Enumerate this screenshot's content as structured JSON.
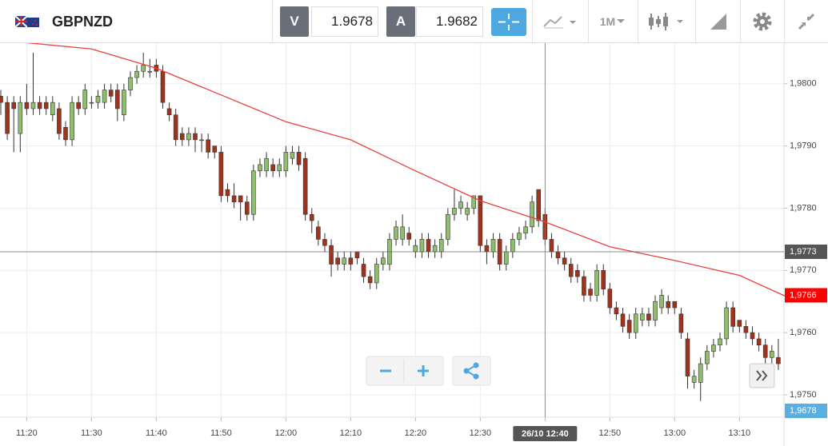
{
  "toolbar": {
    "symbol": "GBPNZD",
    "bid_letter": "V",
    "bid": "1.9678",
    "ask_letter": "A",
    "ask": "1.9682",
    "timeframe": "1M"
  },
  "chart_data": {
    "type": "candlestick",
    "up_color": "#8fbe6c",
    "down_color": "#a3321c",
    "xlim": [
      "11:16",
      "13:17"
    ],
    "xticks": [
      "11:20",
      "11:30",
      "11:40",
      "11:50",
      "12:00",
      "12:10",
      "12:20",
      "12:30",
      "12:40",
      "12:50",
      "13:00",
      "13:10"
    ],
    "ylim": [
      1.97464,
      1.98064
    ],
    "yticks": [
      {
        "value": 1.975,
        "label": "1,9750"
      },
      {
        "value": 1.976,
        "label": "1,9760"
      },
      {
        "value": 1.977,
        "label": "1,9770"
      },
      {
        "value": 1.978,
        "label": "1,9780"
      },
      {
        "value": 1.979,
        "label": "1,9790"
      },
      {
        "value": 1.98,
        "label": "1,9800"
      }
    ],
    "grid": true,
    "x": [
      "11:16",
      "11:17",
      "11:18",
      "11:19",
      "11:20",
      "11:21",
      "11:22",
      "11:23",
      "11:24",
      "11:25",
      "11:26",
      "11:27",
      "11:28",
      "11:29",
      "11:30",
      "11:31",
      "11:32",
      "11:33",
      "11:34",
      "11:35",
      "11:36",
      "11:37",
      "11:38",
      "11:39",
      "11:40",
      "11:41",
      "11:42",
      "11:43",
      "11:44",
      "11:45",
      "11:46",
      "11:47",
      "11:48",
      "11:49",
      "11:50",
      "11:51",
      "11:52",
      "11:53",
      "11:54",
      "11:55",
      "11:56",
      "11:57",
      "11:58",
      "11:59",
      "12:00",
      "12:01",
      "12:02",
      "12:03",
      "12:04",
      "12:05",
      "12:06",
      "12:07",
      "12:08",
      "12:09",
      "12:10",
      "12:11",
      "12:12",
      "12:13",
      "12:14",
      "12:15",
      "12:16",
      "12:17",
      "12:18",
      "12:19",
      "12:20",
      "12:21",
      "12:22",
      "12:23",
      "12:24",
      "12:25",
      "12:26",
      "12:27",
      "12:28",
      "12:29",
      "12:30",
      "12:31",
      "12:32",
      "12:33",
      "12:34",
      "12:35",
      "12:36",
      "12:37",
      "12:38",
      "12:39",
      "12:40",
      "12:41",
      "12:42",
      "12:43",
      "12:44",
      "12:45",
      "12:46",
      "12:47",
      "12:48",
      "12:49",
      "12:50",
      "12:51",
      "12:52",
      "12:53",
      "12:54",
      "12:55",
      "12:56",
      "12:57",
      "12:58",
      "12:59",
      "13:00",
      "13:01",
      "13:02",
      "13:03",
      "13:04",
      "13:05",
      "13:06",
      "13:07",
      "13:08",
      "13:09",
      "13:10",
      "13:11",
      "13:12",
      "13:13",
      "13:14",
      "13:15",
      "13:16"
    ],
    "ohlc": [
      [
        1.9798,
        1.9799,
        1.9795,
        1.9797
      ],
      [
        1.9797,
        1.9798,
        1.9791,
        1.9792
      ],
      [
        1.9797,
        1.9798,
        1.9789,
        1.9796
      ],
      [
        1.9792,
        1.9798,
        1.9789,
        1.9797
      ],
      [
        1.9797,
        1.98,
        1.9795,
        1.9796
      ],
      [
        1.9796,
        1.9805,
        1.9795,
        1.9797
      ],
      [
        1.9797,
        1.9798,
        1.9795,
        1.9796
      ],
      [
        1.9797,
        1.9798,
        1.9795,
        1.9796
      ],
      [
        1.9795,
        1.9798,
        1.9794,
        1.9797
      ],
      [
        1.9796,
        1.9797,
        1.9791,
        1.9792
      ],
      [
        1.9793,
        1.9794,
        1.979,
        1.9791
      ],
      [
        1.9791,
        1.9798,
        1.979,
        1.9797
      ],
      [
        1.9797,
        1.9798,
        1.9795,
        1.9796
      ],
      [
        1.9796,
        1.98,
        1.9795,
        1.9799
      ],
      [
        1.9797,
        1.9798,
        1.9796,
        1.9797
      ],
      [
        1.9797,
        1.9799,
        1.9796,
        1.9798
      ],
      [
        1.9797,
        1.98,
        1.9796,
        1.9799
      ],
      [
        1.9799,
        1.98,
        1.9797,
        1.9798
      ],
      [
        1.9799,
        1.98,
        1.9794,
        1.9796
      ],
      [
        1.9795,
        1.98,
        1.9794,
        1.9799
      ],
      [
        1.9799,
        1.9802,
        1.9798,
        1.9801
      ],
      [
        1.9801,
        1.9803,
        1.98,
        1.9802
      ],
      [
        1.9802,
        1.9805,
        1.9801,
        1.9803
      ],
      [
        1.9802,
        1.9804,
        1.9801,
        1.9802
      ],
      [
        1.9803,
        1.9804,
        1.9801,
        1.9802
      ],
      [
        1.9802,
        1.9803,
        1.9796,
        1.9797
      ],
      [
        1.9796,
        1.9797,
        1.9794,
        1.9795
      ],
      [
        1.9795,
        1.9796,
        1.979,
        1.9791
      ],
      [
        1.9792,
        1.9793,
        1.979,
        1.9791
      ],
      [
        1.9791,
        1.9793,
        1.979,
        1.9792
      ],
      [
        1.9792,
        1.9793,
        1.9789,
        1.9791
      ],
      [
        1.9791,
        1.9792,
        1.9789,
        1.9791
      ],
      [
        1.9791,
        1.9792,
        1.9788,
        1.9789
      ],
      [
        1.979,
        1.979,
        1.9788,
        1.9789
      ],
      [
        1.9789,
        1.979,
        1.9781,
        1.9782
      ],
      [
        1.9783,
        1.9784,
        1.9781,
        1.9782
      ],
      [
        1.9782,
        1.9784,
        1.978,
        1.9781
      ],
      [
        1.9782,
        1.9782,
        1.9778,
        1.9781
      ],
      [
        1.9781,
        1.9782,
        1.9778,
        1.9779
      ],
      [
        1.9779,
        1.9787,
        1.9778,
        1.9786
      ],
      [
        1.9786,
        1.9788,
        1.9785,
        1.9787
      ],
      [
        1.9786,
        1.9789,
        1.9785,
        1.9788
      ],
      [
        1.9787,
        1.9788,
        1.9785,
        1.9786
      ],
      [
        1.9786,
        1.9788,
        1.9785,
        1.9787
      ],
      [
        1.9786,
        1.979,
        1.9785,
        1.9789
      ],
      [
        1.9788,
        1.979,
        1.9787,
        1.9789
      ],
      [
        1.9789,
        1.979,
        1.9786,
        1.9787
      ],
      [
        1.9788,
        1.9789,
        1.9778,
        1.9779
      ],
      [
        1.9779,
        1.978,
        1.9776,
        1.9778
      ],
      [
        1.9777,
        1.9778,
        1.9774,
        1.9775
      ],
      [
        1.9775,
        1.9776,
        1.9773,
        1.9774
      ],
      [
        1.9774,
        1.9775,
        1.9769,
        1.9771
      ],
      [
        1.9772,
        1.9773,
        1.977,
        1.9771
      ],
      [
        1.9771,
        1.9773,
        1.977,
        1.9772
      ],
      [
        1.9772,
        1.9773,
        1.977,
        1.9771
      ],
      [
        1.9773,
        1.9773,
        1.9771,
        1.9772
      ],
      [
        1.9771,
        1.9772,
        1.9768,
        1.9769
      ],
      [
        1.9769,
        1.977,
        1.9767,
        1.9768
      ],
      [
        1.9768,
        1.9772,
        1.9767,
        1.9771
      ],
      [
        1.9771,
        1.9773,
        1.977,
        1.9772
      ],
      [
        1.9771,
        1.9776,
        1.977,
        1.9775
      ],
      [
        1.9775,
        1.9778,
        1.9774,
        1.9777
      ],
      [
        1.9775,
        1.9779,
        1.9774,
        1.9777
      ],
      [
        1.9776,
        1.9777,
        1.9774,
        1.9775
      ],
      [
        1.9773,
        1.9775,
        1.9772,
        1.9774
      ],
      [
        1.9773,
        1.9776,
        1.9772,
        1.9775
      ],
      [
        1.9775,
        1.9776,
        1.9772,
        1.9773
      ],
      [
        1.9773,
        1.9775,
        1.9772,
        1.9774
      ],
      [
        1.9773,
        1.9776,
        1.9772,
        1.9775
      ],
      [
        1.9775,
        1.978,
        1.9774,
        1.9779
      ],
      [
        1.9779,
        1.9783,
        1.9778,
        1.978
      ],
      [
        1.978,
        1.9782,
        1.9779,
        1.9781
      ],
      [
        1.9779,
        1.9781,
        1.9778,
        1.978
      ],
      [
        1.978,
        1.9782,
        1.9779,
        1.9782
      ],
      [
        1.9782,
        1.9782,
        1.9773,
        1.9774
      ],
      [
        1.9774,
        1.9775,
        1.9771,
        1.9773
      ],
      [
        1.9773,
        1.9776,
        1.9772,
        1.9775
      ],
      [
        1.9775,
        1.9776,
        1.977,
        1.9771
      ],
      [
        1.9771,
        1.9774,
        1.977,
        1.9773
      ],
      [
        1.9773,
        1.9776,
        1.9772,
        1.9775
      ],
      [
        1.9775,
        1.9777,
        1.9774,
        1.9776
      ],
      [
        1.9776,
        1.9778,
        1.9775,
        1.9777
      ],
      [
        1.9777,
        1.9782,
        1.9776,
        1.9781
      ],
      [
        1.9783,
        1.9783,
        1.9777,
        1.9778
      ],
      [
        1.9779,
        1.978,
        1.9774,
        1.9775
      ],
      [
        1.9775,
        1.9776,
        1.9772,
        1.9773
      ],
      [
        1.9773,
        1.9774,
        1.9771,
        1.9772
      ],
      [
        1.9772,
        1.9773,
        1.977,
        1.9771
      ],
      [
        1.9771,
        1.9772,
        1.9768,
        1.9769
      ],
      [
        1.977,
        1.9771,
        1.9768,
        1.9769
      ],
      [
        1.9769,
        1.977,
        1.9765,
        1.9766
      ],
      [
        1.9767,
        1.9768,
        1.9765,
        1.9766
      ],
      [
        1.9766,
        1.9771,
        1.9765,
        1.977
      ],
      [
        1.977,
        1.9771,
        1.9766,
        1.9767
      ],
      [
        1.9767,
        1.9768,
        1.9763,
        1.9764
      ],
      [
        1.9764,
        1.9765,
        1.9762,
        1.9763
      ],
      [
        1.9763,
        1.9764,
        1.976,
        1.9761
      ],
      [
        1.9762,
        1.9763,
        1.9759,
        1.976
      ],
      [
        1.976,
        1.9764,
        1.9759,
        1.9763
      ],
      [
        1.9762,
        1.9764,
        1.9761,
        1.9763
      ],
      [
        1.9763,
        1.9764,
        1.9761,
        1.9762
      ],
      [
        1.9762,
        1.9766,
        1.9761,
        1.9765
      ],
      [
        1.9764,
        1.9767,
        1.9763,
        1.9766
      ],
      [
        1.9765,
        1.9766,
        1.9763,
        1.9764
      ],
      [
        1.9765,
        1.9765,
        1.9763,
        1.9764
      ],
      [
        1.9763,
        1.9764,
        1.9759,
        1.976
      ],
      [
        1.9759,
        1.976,
        1.9751,
        1.9753
      ],
      [
        1.9752,
        1.9754,
        1.9751,
        1.9753
      ],
      [
        1.9752,
        1.9756,
        1.9749,
        1.9755
      ],
      [
        1.9755,
        1.9758,
        1.9754,
        1.9757
      ],
      [
        1.9757,
        1.9759,
        1.9756,
        1.9758
      ],
      [
        1.9758,
        1.976,
        1.9757,
        1.9759
      ],
      [
        1.9759,
        1.9765,
        1.9758,
        1.9764
      ],
      [
        1.9764,
        1.9765,
        1.976,
        1.9761
      ],
      [
        1.9762,
        1.9762,
        1.976,
        1.9761
      ],
      [
        1.9761,
        1.9762,
        1.9759,
        1.976
      ],
      [
        1.976,
        1.9761,
        1.9758,
        1.9759
      ],
      [
        1.9759,
        1.976,
        1.9757,
        1.9758
      ],
      [
        1.9758,
        1.9759,
        1.9755,
        1.9756
      ],
      [
        1.9756,
        1.9758,
        1.9755,
        1.9757
      ],
      [
        1.9756,
        1.9759,
        1.9754,
        1.9755
      ]
    ],
    "ma": {
      "color": "#e8413e",
      "x": [
        "11:20",
        "11:30",
        "11:40",
        "11:50",
        "12:00",
        "12:10",
        "12:20",
        "12:30",
        "12:40",
        "12:50",
        "13:00",
        "13:10",
        "13:17"
      ],
      "values": [
        1.98066,
        1.98056,
        1.98025,
        1.97982,
        1.97939,
        1.9791,
        1.9786,
        1.97812,
        1.97778,
        1.97738,
        1.97716,
        1.97692,
        1.97659
      ]
    },
    "crosshair": {
      "time_label": "26/10 12:40",
      "price": 1.9773,
      "price_label": "1,9773"
    },
    "last_price": {
      "value": 1.9766,
      "label": "1,9766",
      "color": "#ff0000"
    },
    "bid_tag": "1,9678"
  }
}
